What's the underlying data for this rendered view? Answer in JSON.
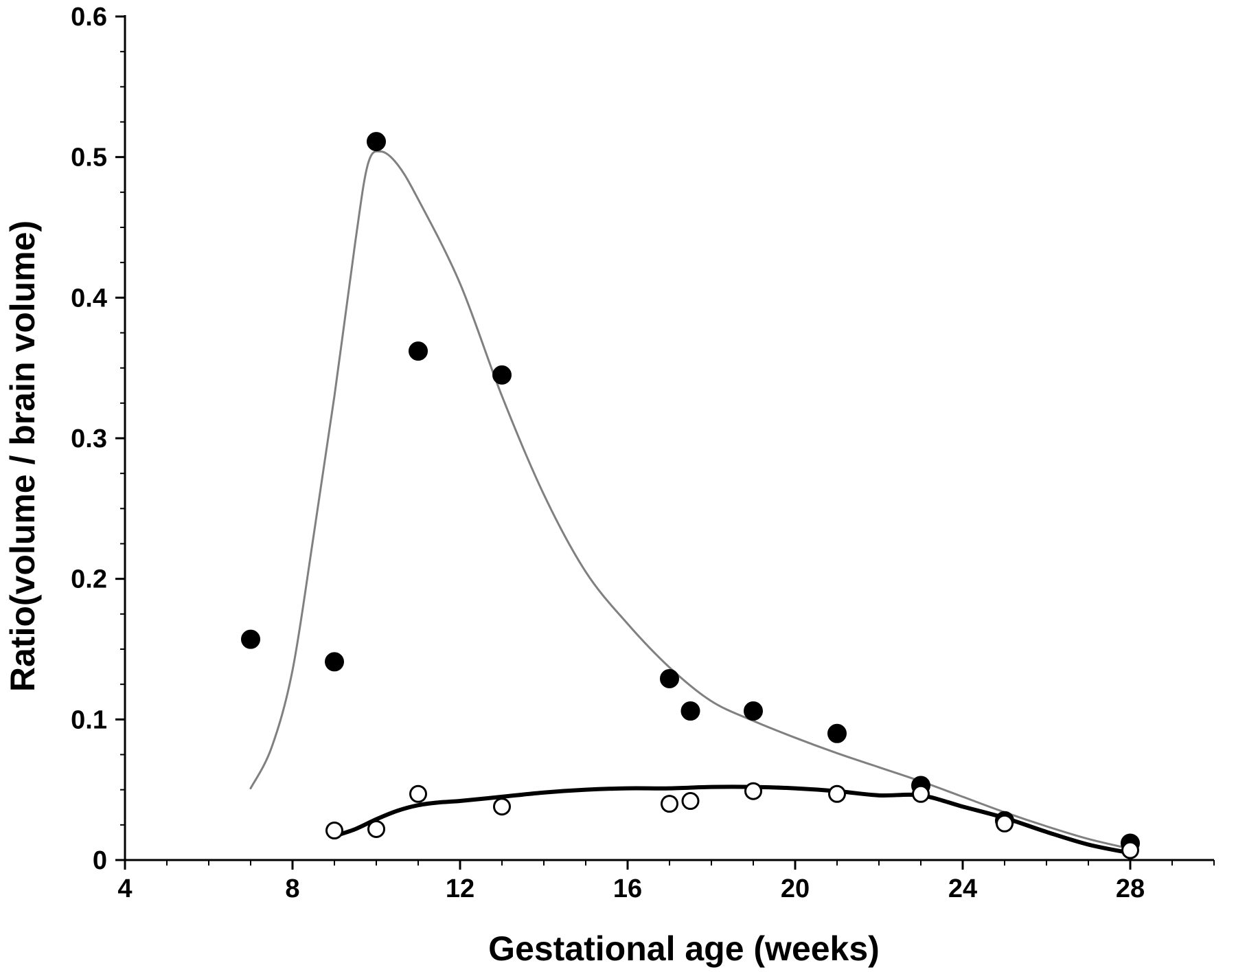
{
  "chart_data": {
    "type": "scatter",
    "title": "",
    "xlabel": "Gestational age (weeks)",
    "ylabel": "Ratio(volume / brain volume)",
    "xlim": [
      4,
      30
    ],
    "ylim": [
      0,
      0.6
    ],
    "xticks": [
      4,
      8,
      12,
      16,
      20,
      24,
      28
    ],
    "xtick_labels": [
      "4",
      "8",
      "12",
      "16",
      "20",
      "24",
      "28"
    ],
    "yticks": [
      0,
      0.1,
      0.2,
      0.3,
      0.4,
      0.5,
      0.6
    ],
    "ytick_labels": [
      "0",
      "0.1",
      "0.2",
      "0.3",
      "0.4",
      "0.5",
      "0.6"
    ],
    "grid": false,
    "legend": "none",
    "series": [
      {
        "marker": "filled-circle",
        "color": "#000000",
        "points": [
          [
            7,
            0.157
          ],
          [
            9,
            0.141
          ],
          [
            10,
            0.511
          ],
          [
            11,
            0.362
          ],
          [
            13,
            0.345
          ],
          [
            17,
            0.129
          ],
          [
            17.5,
            0.106
          ],
          [
            19,
            0.106
          ],
          [
            21,
            0.09
          ],
          [
            23,
            0.053
          ],
          [
            25,
            0.028
          ],
          [
            28,
            0.012
          ]
        ]
      },
      {
        "marker": "open-circle",
        "color": "#000000",
        "points": [
          [
            9,
            0.021
          ],
          [
            10,
            0.022
          ],
          [
            11,
            0.047
          ],
          [
            13,
            0.038
          ],
          [
            17,
            0.04
          ],
          [
            17.5,
            0.042
          ],
          [
            19,
            0.049
          ],
          [
            21,
            0.047
          ],
          [
            23,
            0.047
          ],
          [
            25,
            0.026
          ],
          [
            28,
            0.007
          ]
        ]
      }
    ],
    "fit_lines": [
      {
        "color": "#808080",
        "width": 3,
        "points": [
          [
            7,
            0.051
          ],
          [
            7.5,
            0.08
          ],
          [
            8,
            0.135
          ],
          [
            8.5,
            0.23
          ],
          [
            9,
            0.33
          ],
          [
            9.5,
            0.44
          ],
          [
            9.8,
            0.495
          ],
          [
            10.1,
            0.504
          ],
          [
            10.5,
            0.495
          ],
          [
            11,
            0.47
          ],
          [
            12,
            0.41
          ],
          [
            13,
            0.33
          ],
          [
            14,
            0.26
          ],
          [
            15,
            0.205
          ],
          [
            16,
            0.168
          ],
          [
            17,
            0.137
          ],
          [
            18,
            0.113
          ],
          [
            19,
            0.099
          ],
          [
            20,
            0.087
          ],
          [
            21,
            0.076
          ],
          [
            22,
            0.066
          ],
          [
            23,
            0.056
          ],
          [
            24,
            0.045
          ],
          [
            25,
            0.034
          ],
          [
            26,
            0.024
          ],
          [
            27,
            0.015
          ],
          [
            28,
            0.008
          ]
        ]
      },
      {
        "color": "#000000",
        "width": 6,
        "points": [
          [
            9,
            0.017
          ],
          [
            9.5,
            0.022
          ],
          [
            10,
            0.029
          ],
          [
            10.5,
            0.035
          ],
          [
            11,
            0.039
          ],
          [
            11.5,
            0.041
          ],
          [
            12,
            0.042
          ],
          [
            13,
            0.045
          ],
          [
            14,
            0.048
          ],
          [
            15,
            0.05
          ],
          [
            16,
            0.051
          ],
          [
            17,
            0.051
          ],
          [
            18,
            0.052
          ],
          [
            19,
            0.052
          ],
          [
            20,
            0.051
          ],
          [
            21,
            0.049
          ],
          [
            22,
            0.046
          ],
          [
            23,
            0.046
          ],
          [
            24,
            0.038
          ],
          [
            25,
            0.03
          ],
          [
            26,
            0.02
          ],
          [
            27,
            0.011
          ],
          [
            28,
            0.005
          ]
        ]
      }
    ]
  }
}
